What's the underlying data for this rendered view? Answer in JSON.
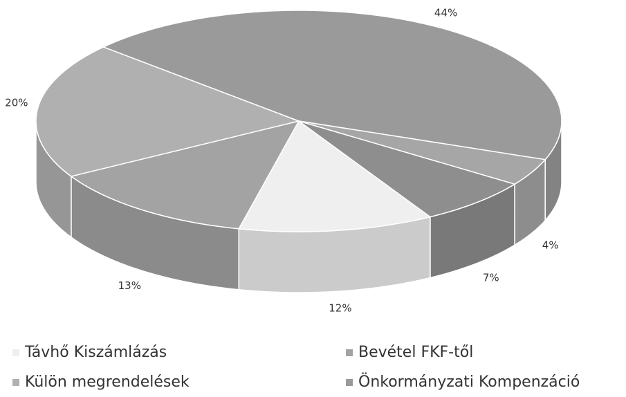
{
  "chart_data": {
    "type": "pie",
    "three_d": true,
    "categories": [
      "Távhő Kiszámlázás",
      "Bevétel FKF-től",
      "Külön megrendelések",
      "Önkormányzati Kompenzáció",
      null,
      null
    ],
    "values": [
      12,
      13,
      20,
      44,
      4,
      7
    ],
    "value_labels": [
      "12%",
      "13%",
      "20%",
      "44%",
      "4%",
      "7%"
    ],
    "colors": [
      "#efefef",
      "#a3a3a3",
      "#b0b0b0",
      "#9a9a9a",
      "#a6a6a6",
      "#8e8e8e"
    ],
    "legend": "bottom"
  }
}
